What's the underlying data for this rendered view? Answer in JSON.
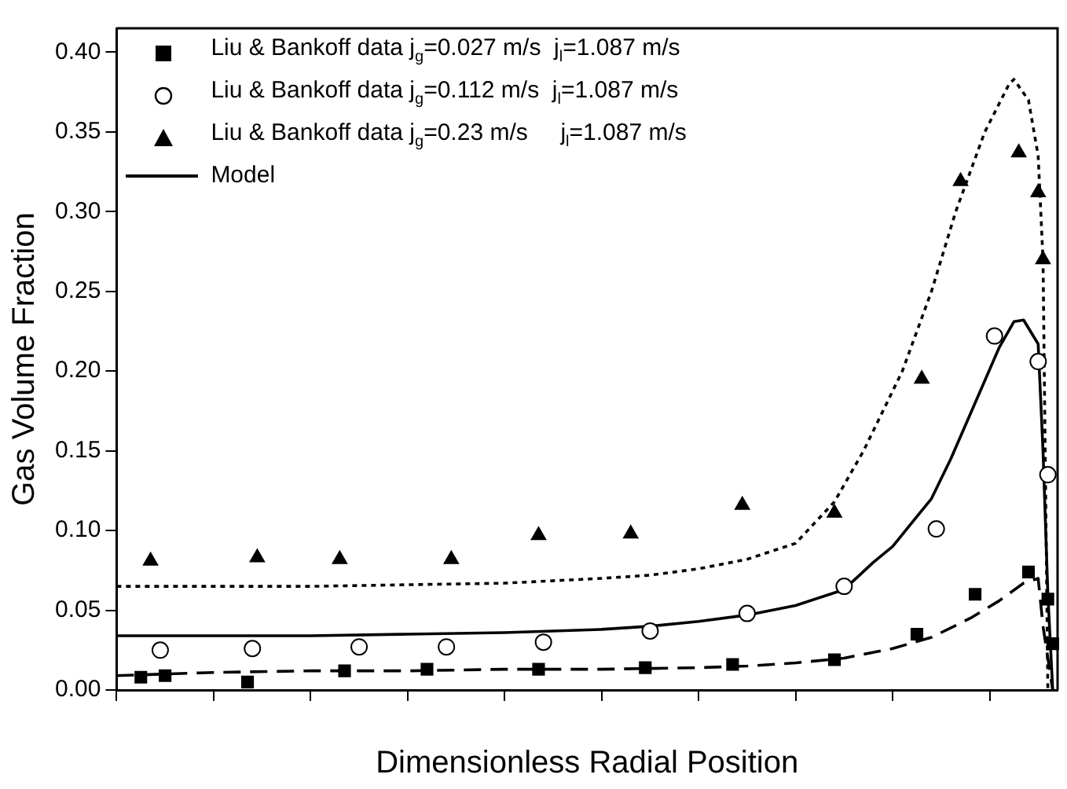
{
  "chart_data": {
    "type": "scatter",
    "xlabel": "Dimensionless Radial Position",
    "ylabel": "Gas Volume Fraction",
    "categories": [
      null,
      null,
      null,
      null,
      null,
      null,
      null,
      null,
      null,
      null,
      null,
      null,
      null,
      null,
      null,
      null,
      null,
      null,
      null,
      null,
      null,
      null,
      null,
      null,
      null,
      null,
      null,
      null,
      null,
      null,
      null,
      null,
      null,
      null,
      null,
      null,
      null,
      null,
      null,
      null,
      null,
      null,
      null,
      null,
      null,
      null,
      null,
      null,
      null,
      null,
      null,
      null,
      null,
      null,
      null,
      null,
      null,
      null,
      null,
      null,
      null,
      null,
      null,
      null,
      null,
      null,
      null,
      null,
      null,
      null,
      null,
      null,
      null,
      null,
      null,
      null,
      null,
      null,
      null,
      null,
      null,
      null,
      null,
      null,
      null,
      null,
      null,
      null,
      null,
      null,
      null,
      null,
      null,
      null,
      null,
      null,
      null,
      null,
      null,
      null,
      null,
      null,
      null,
      null,
      null,
      null,
      null,
      null,
      null,
      null,
      null,
      null,
      null,
      null,
      null,
      null,
      null,
      null,
      null,
      null,
      null,
      null,
      null,
      null,
      null,
      null,
      null,
      null,
      null,
      null,
      null,
      null,
      null,
      null,
      null,
      null,
      null,
      null,
      null,
      null,
      null,
      null,
      null,
      null,
      null,
      null,
      null,
      null,
      null,
      null,
      null,
      null,
      null,
      null,
      null,
      null,
      null,
      null,
      null,
      null,
      null,
      null,
      null,
      null,
      null,
      null,
      null,
      null,
      null,
      null,
      null,
      null,
      null,
      null,
      null,
      null,
      null,
      null,
      null,
      null,
      null,
      null,
      null,
      null,
      null,
      null,
      null,
      null,
      null,
      null,
      null,
      null,
      null,
      null,
      null
    ],
    "ylim": [
      0,
      0.415
    ],
    "yticks": [
      {
        "value": 0,
        "label": "0.00"
      },
      {
        "value": 0.05,
        "label": "0.05"
      },
      {
        "value": 0.1,
        "label": "0.10"
      },
      {
        "value": 0.15,
        "label": "0.15"
      },
      {
        "value": 0.2,
        "label": "0.20"
      },
      {
        "value": 0.25,
        "label": "0.25"
      },
      {
        "value": 0.3,
        "label": "0.30"
      },
      {
        "value": 0.35,
        "label": "0.35"
      },
      {
        "value": 0.4,
        "label": "0.40"
      }
    ],
    "tick_labels": "y",
    "grid": false,
    "legend": "top left",
    "series": [
      {
        "name": "Liu & Bankoff data j$_{g}$=0.027 m/s  j$_{l}$=1.087 m/s",
        "marker": "square",
        "color": "#000000",
        "values": [
          null,
          null,
          null,
          null,
          null,
          0.008,
          null,
          null,
          null,
          null,
          0.009,
          null,
          null,
          null,
          null,
          null,
          null,
          null,
          null,
          null,
          null,
          null,
          null,
          null,
          null,
          null,
          null,
          0.005,
          null,
          null,
          null,
          null,
          null,
          null,
          null,
          null,
          null,
          null,
          null,
          null,
          null,
          null,
          null,
          null,
          null,
          null,
          null,
          0.012,
          null,
          null,
          null,
          null,
          null,
          null,
          null,
          null,
          null,
          null,
          null,
          null,
          null,
          null,
          null,
          null,
          0.013,
          null,
          null,
          null,
          null,
          null,
          null,
          null,
          null,
          null,
          null,
          null,
          null,
          null,
          null,
          null,
          null,
          null,
          null,
          null,
          null,
          null,
          null,
          0.013,
          null,
          null,
          null,
          null,
          null,
          null,
          null,
          null,
          null,
          null,
          null,
          null,
          null,
          null,
          null,
          null,
          null,
          null,
          null,
          null,
          null,
          0.014,
          null,
          null,
          null,
          null,
          null,
          null,
          null,
          null,
          null,
          null,
          null,
          null,
          null,
          null,
          null,
          null,
          null,
          0.016,
          null,
          null,
          null,
          null,
          null,
          null,
          null,
          null,
          null,
          null,
          null,
          null,
          null,
          null,
          null,
          null,
          null,
          null,
          null,
          null,
          0.019,
          null,
          null,
          null,
          null,
          null,
          null,
          null,
          null,
          null,
          null,
          null,
          null,
          null,
          null,
          null,
          null,
          0.035,
          null,
          null,
          null,
          null,
          null,
          null,
          null,
          null,
          null,
          null,
          null,
          0.06,
          null,
          null,
          null,
          null,
          null,
          null,
          null,
          null,
          null,
          null,
          0.074,
          null,
          null,
          null,
          0.057,
          0.029,
          null
        ]
      },
      {
        "name": "Liu & Bankoff data j$_{g}$=0.112 m/s  j$_{l}$=1.087 m/s",
        "marker": "circle",
        "color": "#000000",
        "values": [
          null,
          null,
          null,
          null,
          null,
          null,
          null,
          null,
          null,
          0.025,
          null,
          null,
          null,
          null,
          null,
          null,
          null,
          null,
          null,
          null,
          null,
          null,
          null,
          null,
          null,
          null,
          null,
          null,
          0.026,
          null,
          null,
          null,
          null,
          null,
          null,
          null,
          null,
          null,
          null,
          null,
          null,
          null,
          null,
          null,
          null,
          null,
          null,
          null,
          null,
          null,
          0.027,
          null,
          null,
          null,
          null,
          null,
          null,
          null,
          null,
          null,
          null,
          null,
          null,
          null,
          null,
          null,
          null,
          null,
          0.027,
          null,
          null,
          null,
          null,
          null,
          null,
          null,
          null,
          null,
          null,
          null,
          null,
          null,
          null,
          null,
          null,
          null,
          null,
          null,
          0.03,
          null,
          null,
          null,
          null,
          null,
          null,
          null,
          null,
          null,
          null,
          null,
          null,
          null,
          null,
          null,
          null,
          null,
          null,
          null,
          null,
          null,
          0.037,
          null,
          null,
          null,
          null,
          null,
          null,
          null,
          null,
          null,
          null,
          null,
          null,
          null,
          null,
          null,
          null,
          null,
          null,
          null,
          0.048,
          null,
          null,
          null,
          null,
          null,
          null,
          null,
          null,
          null,
          null,
          null,
          null,
          null,
          null,
          null,
          null,
          null,
          null,
          null,
          0.065,
          null,
          null,
          null,
          null,
          null,
          null,
          null,
          null,
          null,
          null,
          null,
          null,
          null,
          null,
          null,
          null,
          null,
          null,
          0.101,
          null,
          null,
          null,
          null,
          null,
          null,
          null,
          null,
          null,
          null,
          null,
          0.222,
          null,
          null,
          null,
          null,
          null,
          null,
          null,
          null,
          0.206,
          null,
          0.135,
          null,
          null
        ]
      },
      {
        "name": "Liu & Bankoff data j$_{g}$=0.23 m/s     j$_{l}$=1.087 m/s",
        "marker": "triangle",
        "color": "#000000",
        "values": [
          null,
          null,
          null,
          null,
          null,
          null,
          null,
          0.081,
          null,
          null,
          null,
          null,
          null,
          null,
          null,
          null,
          null,
          null,
          null,
          null,
          null,
          null,
          null,
          null,
          null,
          null,
          null,
          null,
          null,
          0.083,
          null,
          null,
          null,
          null,
          null,
          null,
          null,
          null,
          null,
          null,
          null,
          null,
          null,
          null,
          null,
          null,
          0.082,
          null,
          null,
          null,
          null,
          null,
          null,
          null,
          null,
          null,
          null,
          null,
          null,
          null,
          null,
          null,
          null,
          null,
          null,
          null,
          null,
          null,
          null,
          0.082,
          null,
          null,
          null,
          null,
          null,
          null,
          null,
          null,
          null,
          null,
          null,
          null,
          null,
          null,
          null,
          null,
          null,
          0.097,
          null,
          null,
          null,
          null,
          null,
          null,
          null,
          null,
          null,
          null,
          null,
          null,
          null,
          null,
          null,
          null,
          null,
          null,
          0.098,
          null,
          null,
          null,
          null,
          null,
          null,
          null,
          null,
          null,
          null,
          null,
          null,
          null,
          null,
          null,
          null,
          null,
          null,
          null,
          null,
          null,
          null,
          0.116,
          null,
          null,
          null,
          null,
          null,
          null,
          null,
          null,
          null,
          null,
          null,
          null,
          null,
          null,
          null,
          null,
          null,
          null,
          0.111,
          null,
          null,
          null,
          null,
          null,
          null,
          null,
          null,
          null,
          null,
          null,
          null,
          null,
          null,
          null,
          null,
          null,
          0.195,
          null,
          null,
          null,
          null,
          null,
          null,
          null,
          0.319,
          null,
          null,
          null,
          null,
          null,
          null,
          null,
          null,
          null,
          null,
          null,
          0.337,
          null,
          null,
          null,
          0.312,
          0.27,
          null,
          null,
          null
        ]
      },
      {
        "name": "Model",
        "type": "line",
        "marker": "none",
        "line_style": "solid",
        "color": "#000000",
        "values": [
          0.034,
          null,
          null,
          null,
          null,
          null,
          null,
          null,
          null,
          null,
          null,
          null,
          null,
          null,
          null,
          null,
          null,
          null,
          null,
          null,
          0.034,
          null,
          null,
          null,
          null,
          null,
          null,
          null,
          null,
          null,
          null,
          null,
          null,
          null,
          null,
          null,
          null,
          null,
          null,
          null,
          0.034,
          null,
          null,
          null,
          null,
          null,
          null,
          null,
          null,
          null,
          null,
          null,
          null,
          null,
          null,
          null,
          null,
          null,
          null,
          null,
          0.035,
          null,
          null,
          null,
          null,
          null,
          null,
          null,
          null,
          null,
          null,
          null,
          null,
          null,
          null,
          null,
          null,
          null,
          null,
          null,
          0.036,
          null,
          null,
          null,
          null,
          null,
          null,
          null,
          null,
          null,
          null,
          null,
          null,
          null,
          null,
          null,
          null,
          null,
          null,
          null,
          0.038,
          null,
          null,
          null,
          null,
          null,
          null,
          null,
          null,
          null,
          0.04,
          null,
          null,
          null,
          null,
          null,
          null,
          null,
          null,
          null,
          0.043,
          null,
          null,
          null,
          null,
          null,
          null,
          null,
          null,
          null,
          0.047,
          null,
          null,
          null,
          null,
          null,
          null,
          null,
          null,
          null,
          0.053,
          null,
          null,
          null,
          null,
          null,
          null,
          null,
          null,
          null,
          0.063,
          null,
          null,
          null,
          null,
          null,
          0.08,
          null,
          null,
          null,
          0.09,
          null,
          null,
          null,
          0.105,
          null,
          null,
          null,
          0.12,
          null,
          null,
          null,
          0.145,
          null,
          null,
          null,
          null,
          0.18,
          null,
          null,
          null,
          null,
          0.215,
          null,
          null,
          0.231,
          null,
          0.232,
          null,
          null,
          0.217,
          0.15,
          0.06,
          0,
          null
        ]
      },
      {
        "type": "line",
        "marker": "none",
        "line_style": "dashed",
        "color": "#000000",
        "values": [
          0.009,
          null,
          null,
          null,
          null,
          null,
          null,
          null,
          null,
          null,
          null,
          null,
          null,
          null,
          null,
          null,
          null,
          null,
          null,
          null,
          0.011,
          null,
          null,
          null,
          null,
          null,
          null,
          null,
          null,
          null,
          null,
          null,
          null,
          null,
          null,
          null,
          null,
          null,
          null,
          null,
          0.012,
          null,
          null,
          null,
          null,
          null,
          null,
          null,
          null,
          null,
          null,
          null,
          null,
          null,
          null,
          null,
          null,
          null,
          null,
          null,
          0.012,
          null,
          null,
          null,
          null,
          null,
          null,
          null,
          null,
          null,
          null,
          null,
          null,
          null,
          null,
          null,
          null,
          null,
          null,
          null,
          0.013,
          null,
          null,
          null,
          null,
          null,
          null,
          null,
          null,
          null,
          null,
          null,
          null,
          null,
          null,
          null,
          null,
          null,
          null,
          null,
          0.013,
          null,
          null,
          null,
          null,
          null,
          null,
          null,
          null,
          null,
          null,
          null,
          null,
          null,
          null,
          null,
          null,
          null,
          null,
          null,
          0.014,
          null,
          null,
          null,
          null,
          null,
          null,
          null,
          null,
          null,
          0.015,
          null,
          null,
          null,
          null,
          null,
          null,
          null,
          null,
          null,
          0.017,
          null,
          null,
          null,
          null,
          null,
          null,
          null,
          null,
          null,
          0.02,
          null,
          null,
          null,
          null,
          null,
          null,
          null,
          null,
          null,
          0.026,
          null,
          null,
          null,
          null,
          null,
          null,
          null,
          0.033,
          null,
          null,
          null,
          null,
          null,
          null,
          null,
          0.045,
          null,
          null,
          null,
          null,
          null,
          0.056,
          null,
          null,
          null,
          null,
          0.067,
          null,
          null,
          0.07,
          0.04,
          null,
          0,
          null
        ]
      },
      {
        "type": "line",
        "marker": "none",
        "line_style": "dotted",
        "color": "#000000",
        "values": [
          0.065,
          null,
          null,
          null,
          null,
          null,
          null,
          null,
          null,
          null,
          null,
          null,
          null,
          null,
          null,
          null,
          null,
          null,
          null,
          null,
          0.065,
          null,
          null,
          null,
          null,
          null,
          null,
          null,
          null,
          null,
          null,
          null,
          null,
          null,
          null,
          null,
          null,
          null,
          null,
          null,
          0.065,
          null,
          null,
          null,
          null,
          null,
          null,
          null,
          null,
          null,
          null,
          null,
          null,
          null,
          null,
          null,
          null,
          null,
          null,
          null,
          0.066,
          null,
          null,
          null,
          null,
          null,
          null,
          null,
          null,
          null,
          null,
          null,
          null,
          null,
          null,
          null,
          null,
          null,
          null,
          null,
          0.067,
          null,
          null,
          null,
          null,
          null,
          null,
          null,
          null,
          null,
          null,
          null,
          null,
          null,
          null,
          null,
          null,
          null,
          null,
          null,
          0.07,
          null,
          null,
          null,
          null,
          null,
          null,
          null,
          null,
          null,
          0.072,
          null,
          null,
          null,
          null,
          null,
          null,
          null,
          null,
          null,
          0.076,
          null,
          null,
          null,
          null,
          null,
          null,
          null,
          null,
          null,
          0.082,
          null,
          null,
          null,
          null,
          null,
          null,
          null,
          null,
          null,
          0.092,
          null,
          null,
          null,
          null,
          null,
          null,
          null,
          0.118,
          null,
          null,
          null,
          null,
          null,
          0.15,
          null,
          null,
          null,
          null,
          null,
          null,
          null,
          0.2,
          null,
          null,
          null,
          null,
          null,
          0.25,
          null,
          null,
          null,
          null,
          0.3,
          null,
          null,
          null,
          null,
          null,
          0.35,
          null,
          null,
          null,
          null,
          0.38,
          0.383,
          null,
          null,
          0.37,
          null,
          0.335,
          0.27,
          0,
          null,
          null
        ]
      }
    ]
  }
}
